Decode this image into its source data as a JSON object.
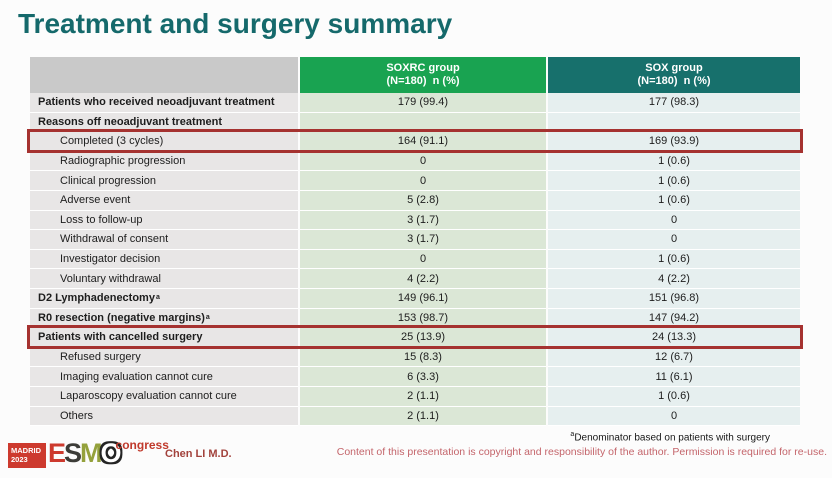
{
  "title": "Treatment and surgery summary",
  "table": {
    "columns": [
      {
        "name": "",
        "sub": ""
      },
      {
        "name": "SOXRC group",
        "sub": "(N=180)  n (%)"
      },
      {
        "name": "SOX group",
        "sub": "(N=180)  n (%)"
      }
    ],
    "rows": [
      {
        "label": "Patients who received neoadjuvant treatment",
        "soxrc": "179 (99.4)",
        "sox": "177 (98.3)",
        "bold": true,
        "indent": false,
        "highlight": false
      },
      {
        "label": "Reasons off neoadjuvant treatment",
        "soxrc": "",
        "sox": "",
        "bold": true,
        "indent": false,
        "highlight": false
      },
      {
        "label": "Completed (3 cycles)",
        "soxrc": "164 (91.1)",
        "sox": "169 (93.9)",
        "bold": false,
        "indent": true,
        "highlight": true
      },
      {
        "label": "Radiographic progression",
        "soxrc": "0",
        "sox": "1 (0.6)",
        "bold": false,
        "indent": true,
        "highlight": false
      },
      {
        "label": "Clinical progression",
        "soxrc": "0",
        "sox": "1 (0.6)",
        "bold": false,
        "indent": true,
        "highlight": false
      },
      {
        "label": "Adverse event",
        "soxrc": "5 (2.8)",
        "sox": "1 (0.6)",
        "bold": false,
        "indent": true,
        "highlight": false
      },
      {
        "label": "Loss to follow-up",
        "soxrc": "3 (1.7)",
        "sox": "0",
        "bold": false,
        "indent": true,
        "highlight": false
      },
      {
        "label": "Withdrawal of consent",
        "soxrc": "3 (1.7)",
        "sox": "0",
        "bold": false,
        "indent": true,
        "highlight": false
      },
      {
        "label": "Investigator decision",
        "soxrc": "0",
        "sox": "1 (0.6)",
        "bold": false,
        "indent": true,
        "highlight": false
      },
      {
        "label": "Voluntary withdrawal",
        "soxrc": "4 (2.2)",
        "sox": "4 (2.2)",
        "bold": false,
        "indent": true,
        "highlight": false
      },
      {
        "label": "D2 Lymphadenectomy",
        "sup": "a",
        "soxrc": "149 (96.1)",
        "sox": "151 (96.8)",
        "bold": true,
        "indent": false,
        "highlight": false
      },
      {
        "label": "R0 resection (negative margins)",
        "sup": "a",
        "soxrc": "153 (98.7)",
        "sox": "147 (94.2)",
        "bold": true,
        "indent": false,
        "highlight": false
      },
      {
        "label": "Patients with cancelled surgery",
        "soxrc": "25 (13.9)",
        "sox": "24 (13.3)",
        "bold": true,
        "indent": false,
        "highlight": true
      },
      {
        "label": "Refused surgery",
        "soxrc": "15 (8.3)",
        "sox": "12 (6.7)",
        "bold": false,
        "indent": true,
        "highlight": false
      },
      {
        "label": "Imaging evaluation cannot cure",
        "soxrc": "6 (3.3)",
        "sox": "11 (6.1)",
        "bold": false,
        "indent": true,
        "highlight": false
      },
      {
        "label": "Laparoscopy evaluation cannot cure",
        "soxrc": "2 (1.1)",
        "sox": "1 (0.6)",
        "bold": false,
        "indent": true,
        "highlight": false
      },
      {
        "label": "Others",
        "soxrc": "2 (1.1)",
        "sox": "0",
        "bold": false,
        "indent": true,
        "highlight": false
      }
    ]
  },
  "footer": {
    "logo": {
      "city": "MADRID",
      "year": "2023",
      "letters": [
        "E",
        "S",
        "M",
        "O"
      ],
      "congress": "congress"
    },
    "author": "Chen LI M.D.",
    "footnote_sup": "a",
    "footnote": "Denominator based on patients with surgery",
    "copyright": "Content of this presentation is copyright and responsibility of the author. Permission is required for re-use."
  },
  "colors": {
    "title": "#15696b",
    "header_soxrc": "#19a351",
    "header_sox": "#17706c",
    "label_header": "#c9c9c9",
    "label_cell": "#e8e6e6",
    "soxrc_cell": "#dbe7d6",
    "sox_cell": "#e6efef",
    "highlight_border": "#a53230",
    "author_color": "#a2423c",
    "copyright_color": "#c4656b"
  }
}
